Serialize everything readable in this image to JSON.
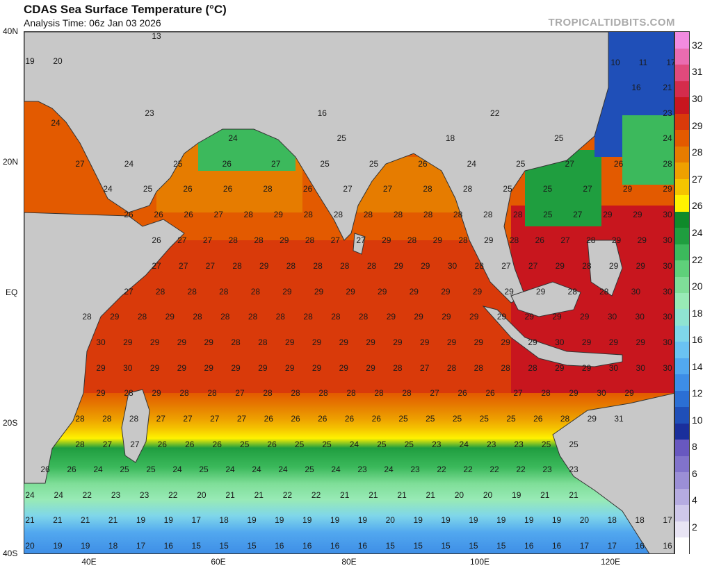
{
  "header": {
    "title": "CDAS Sea Surface Temperature (°C)",
    "subtitle": "Analysis Time: 06z Jan 03 2026",
    "credit": "TROPICALTIDBITS.COM"
  },
  "axes": {
    "lat_labels": [
      "40N",
      "20N",
      "EQ",
      "20S",
      "40S"
    ],
    "lon_labels": [
      "40E",
      "60E",
      "80E",
      "100E",
      "120E"
    ]
  },
  "colorbar": {
    "labels": [
      "2",
      "4",
      "6",
      "8",
      "10",
      "12",
      "14",
      "16",
      "18",
      "20",
      "22",
      "24",
      "26",
      "27",
      "28",
      "29",
      "30",
      "31",
      "32"
    ],
    "colors": [
      "#ffffff",
      "#e8e4f4",
      "#cfc8ea",
      "#b5abe0",
      "#9b8fd6",
      "#8173cb",
      "#6858c0",
      "#1a2f9c",
      "#1f4fb8",
      "#2b6fd4",
      "#3d8de6",
      "#52a8ef",
      "#6ac2f2",
      "#7fd6ea",
      "#8fe3d2",
      "#98eab6",
      "#7fde98",
      "#5fd07a",
      "#3cb95c",
      "#1f9e3f",
      "#0f8a2a",
      "#fff200",
      "#f5c400",
      "#eea000",
      "#e67c00",
      "#e35a00",
      "#d93a0a",
      "#c8161e",
      "#d42c4c",
      "#e04a7c",
      "#ea6cb0",
      "#f28be0"
    ]
  },
  "sst_values": [
    {
      "row": [
        13
      ]
    },
    {
      "row": [
        19,
        20
      ]
    },
    {
      "row": [
        10,
        11,
        17
      ]
    },
    {
      "row": [
        16,
        21
      ]
    },
    {
      "row": [
        23,
        16,
        22,
        23
      ]
    },
    {
      "row": [
        24
      ]
    },
    {
      "row": [
        24,
        25,
        18,
        25,
        24
      ]
    },
    {
      "row": [
        27,
        24,
        25,
        26,
        27,
        25,
        25,
        26,
        24,
        25,
        27,
        26,
        28
      ]
    },
    {
      "row": [
        24,
        25,
        26,
        26,
        28,
        26,
        27,
        27,
        28,
        28,
        25,
        25,
        27,
        29,
        29
      ]
    },
    {
      "row": [
        26,
        26,
        26,
        27,
        28,
        29,
        28,
        28,
        28,
        28,
        28,
        28,
        28,
        28,
        25,
        27,
        29,
        29,
        30
      ]
    },
    {
      "row": [
        26,
        27,
        27,
        28,
        28,
        29,
        28,
        27,
        27,
        29,
        28,
        29,
        28,
        29,
        28,
        26,
        27,
        28,
        29,
        29,
        30
      ]
    },
    {
      "row": [
        27,
        27,
        27,
        28,
        29,
        28,
        28,
        28,
        28,
        29,
        29,
        30,
        28,
        27,
        27,
        29,
        28,
        29,
        29,
        30
      ]
    },
    {
      "row": [
        27,
        28,
        28,
        28,
        28,
        29,
        29,
        29,
        29,
        29,
        29,
        29,
        29,
        29,
        28,
        28,
        30,
        30
      ]
    },
    {
      "row": [
        28,
        29,
        28,
        29,
        28,
        28,
        28,
        28,
        28,
        28,
        28,
        29,
        29,
        29,
        29,
        29,
        29,
        29,
        29,
        30,
        30,
        30
      ]
    },
    {
      "row": [
        30,
        29,
        29,
        29,
        29,
        28,
        28,
        29,
        29,
        29,
        29,
        29,
        29,
        29,
        29,
        29,
        29,
        30,
        29,
        29,
        29,
        30
      ]
    },
    {
      "row": [
        29,
        30,
        29,
        29,
        29,
        29,
        29,
        29,
        29,
        29,
        29,
        28,
        27,
        28,
        28,
        28,
        28,
        29,
        29,
        30,
        30,
        30
      ]
    },
    {
      "row": [
        29,
        28,
        29,
        28,
        28,
        27,
        28,
        28,
        28,
        28,
        28,
        28,
        27,
        26,
        26,
        27,
        28,
        29,
        30,
        29
      ]
    },
    {
      "row": [
        28,
        28,
        28,
        27,
        27,
        27,
        27,
        26,
        26,
        26,
        26,
        26,
        25,
        25,
        25,
        25,
        25,
        26,
        28,
        29,
        31
      ]
    },
    {
      "row": [
        28,
        27,
        27,
        26,
        26,
        26,
        25,
        26,
        25,
        25,
        24,
        25,
        25,
        23,
        24,
        23,
        23,
        25,
        25
      ]
    },
    {
      "row": [
        26,
        26,
        24,
        25,
        25,
        24,
        25,
        24,
        24,
        24,
        25,
        24,
        23,
        24,
        23,
        22,
        22,
        22,
        22,
        23,
        23
      ]
    },
    {
      "row": [
        24,
        24,
        22,
        23,
        23,
        22,
        20,
        21,
        21,
        22,
        22,
        21,
        21,
        21,
        21,
        20,
        20,
        19,
        21,
        21
      ]
    },
    {
      "row": [
        21,
        21,
        21,
        21,
        19,
        19,
        17,
        18,
        19,
        19,
        19,
        19,
        19,
        20,
        19,
        19,
        19,
        19,
        19,
        19,
        20,
        18,
        18,
        17
      ]
    },
    {
      "row": [
        20,
        19,
        19,
        18,
        17,
        16,
        15,
        15,
        15,
        16,
        16,
        16,
        16,
        15,
        15,
        15,
        15,
        15,
        16,
        16,
        17,
        17,
        16,
        16
      ]
    }
  ]
}
